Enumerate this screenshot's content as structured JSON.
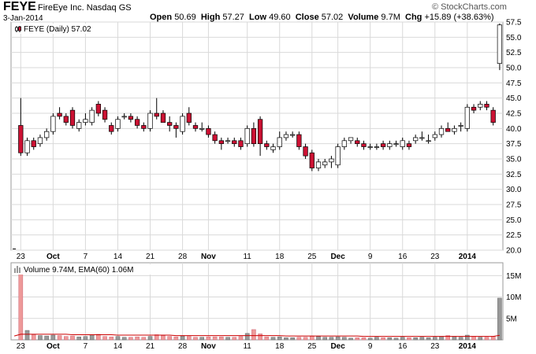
{
  "header": {
    "symbol": "FEYE",
    "company": "FireEye Inc. Nasdaq GS",
    "date": "3-Jan-2014",
    "open_label": "Open",
    "open": "50.69",
    "high_label": "High",
    "high": "57.27",
    "low_label": "Low",
    "low": "49.60",
    "close_label": "Close",
    "close": "57.02",
    "volume_label": "Volume",
    "volume": "9.7M",
    "chg_label": "Chg",
    "chg": "+15.89 (+38.63%)",
    "logo": "© StockCharts.com"
  },
  "colors": {
    "up": "#ffffff",
    "down": "#cc1133",
    "grid": "#d9d9d9",
    "volume_up": "#999999",
    "volume_down": "#ee9999",
    "ema": "#cc0000"
  },
  "chart_data": [
    {
      "type": "candlestick",
      "legend": "FEYE (Daily) 57.02",
      "y_ticks": [
        "57.5",
        "55.0",
        "52.5",
        "50.0",
        "47.5",
        "45.0",
        "42.5",
        "40.0",
        "37.5",
        "35.0",
        "32.5",
        "30.0",
        "27.5",
        "25.0",
        "22.5",
        "20.0"
      ],
      "ylim": [
        20,
        57.5
      ],
      "x_labels": [
        {
          "label": "23",
          "index": 1,
          "bold": false
        },
        {
          "label": "Oct",
          "index": 6,
          "bold": true
        },
        {
          "label": "7",
          "index": 11,
          "bold": false
        },
        {
          "label": "14",
          "index": 16,
          "bold": false
        },
        {
          "label": "21",
          "index": 21,
          "bold": false
        },
        {
          "label": "28",
          "index": 26,
          "bold": false
        },
        {
          "label": "Nov",
          "index": 30,
          "bold": true
        },
        {
          "label": "11",
          "index": 36,
          "bold": false
        },
        {
          "label": "18",
          "index": 41,
          "bold": false
        },
        {
          "label": "25",
          "index": 46,
          "bold": false
        },
        {
          "label": "Dec",
          "index": 50,
          "bold": true
        },
        {
          "label": "9",
          "index": 55,
          "bold": false
        },
        {
          "label": "16",
          "index": 60,
          "bold": false
        },
        {
          "label": "23",
          "index": 65,
          "bold": false
        },
        {
          "label": "2014",
          "index": 70,
          "bold": true
        }
      ],
      "ohlc": [
        [
          20.2,
          20.2,
          20.2,
          20.2
        ],
        [
          40.5,
          45.0,
          35.5,
          36.0
        ],
        [
          36.0,
          38.5,
          35.5,
          38.0
        ],
        [
          38.0,
          38.5,
          36.5,
          37.0
        ],
        [
          37.5,
          39.0,
          37.0,
          38.5
        ],
        [
          38.5,
          40.0,
          38.0,
          39.5
        ],
        [
          39.5,
          42.5,
          39.0,
          42.0
        ],
        [
          42.5,
          43.5,
          41.5,
          42.0
        ],
        [
          42.0,
          42.5,
          40.5,
          41.0
        ],
        [
          43.0,
          43.5,
          40.0,
          40.5
        ],
        [
          40.0,
          41.5,
          39.5,
          41.0
        ],
        [
          41.0,
          42.5,
          40.5,
          41.5
        ],
        [
          41.0,
          43.5,
          40.5,
          43.0
        ],
        [
          44.0,
          44.5,
          42.0,
          42.5
        ],
        [
          43.0,
          43.5,
          41.0,
          41.5
        ],
        [
          40.5,
          41.0,
          39.0,
          39.5
        ],
        [
          40.0,
          42.0,
          39.5,
          41.5
        ],
        [
          42.0,
          42.5,
          41.5,
          42.0
        ],
        [
          42.0,
          42.5,
          41.0,
          41.5
        ],
        [
          41.5,
          42.0,
          40.0,
          40.5
        ],
        [
          40.5,
          41.0,
          39.5,
          40.0
        ],
        [
          40.0,
          43.0,
          39.5,
          42.5
        ],
        [
          42.5,
          45.0,
          41.5,
          42.0
        ],
        [
          42.5,
          43.0,
          41.0,
          41.0
        ],
        [
          41.0,
          42.0,
          39.5,
          40.5
        ],
        [
          40.5,
          41.0,
          38.5,
          40.0
        ],
        [
          39.5,
          42.5,
          39.0,
          42.0
        ],
        [
          42.5,
          43.5,
          40.5,
          41.0
        ],
        [
          40.5,
          41.0,
          39.5,
          40.0
        ],
        [
          40.0,
          41.0,
          39.5,
          40.0
        ],
        [
          40.0,
          40.5,
          38.5,
          39.0
        ],
        [
          39.0,
          39.5,
          37.5,
          38.0
        ],
        [
          38.0,
          38.5,
          36.5,
          37.5
        ],
        [
          38.0,
          38.5,
          37.5,
          38.0
        ],
        [
          38.0,
          38.5,
          37.0,
          37.5
        ],
        [
          38.0,
          38.5,
          36.5,
          37.0
        ],
        [
          37.5,
          40.5,
          37.0,
          40.0
        ],
        [
          40.0,
          41.0,
          37.0,
          37.5
        ],
        [
          41.5,
          42.0,
          35.5,
          37.5
        ],
        [
          37.5,
          38.0,
          36.5,
          37.0
        ],
        [
          36.5,
          37.5,
          36.0,
          37.0
        ],
        [
          37.0,
          39.5,
          36.5,
          38.5
        ],
        [
          38.5,
          39.5,
          38.0,
          39.0
        ],
        [
          39.0,
          39.5,
          38.5,
          39.0
        ],
        [
          39.0,
          39.5,
          36.5,
          37.0
        ],
        [
          37.0,
          37.5,
          35.0,
          35.5
        ],
        [
          36.0,
          36.5,
          33.0,
          33.5
        ],
        [
          33.5,
          35.0,
          33.0,
          34.5
        ],
        [
          34.0,
          35.0,
          33.5,
          34.5
        ],
        [
          34.5,
          35.5,
          33.5,
          35.0
        ],
        [
          34.0,
          37.5,
          33.5,
          37.0
        ],
        [
          37.0,
          38.5,
          36.5,
          38.0
        ],
        [
          38.0,
          38.5,
          37.5,
          38.5
        ],
        [
          38.0,
          38.5,
          37.0,
          37.5
        ],
        [
          37.5,
          38.0,
          36.5,
          37.0
        ],
        [
          37.0,
          37.5,
          36.5,
          37.0
        ],
        [
          37.0,
          37.5,
          36.5,
          37.0
        ],
        [
          37.5,
          38.0,
          36.5,
          37.0
        ],
        [
          37.0,
          38.0,
          36.5,
          37.5
        ],
        [
          37.5,
          38.0,
          37.0,
          37.5
        ],
        [
          37.0,
          38.5,
          36.5,
          38.0
        ],
        [
          37.5,
          38.0,
          36.5,
          37.0
        ],
        [
          38.0,
          39.0,
          37.5,
          38.5
        ],
        [
          38.5,
          39.5,
          38.0,
          38.5
        ],
        [
          38.0,
          39.0,
          37.5,
          38.0
        ],
        [
          38.5,
          39.5,
          38.0,
          39.0
        ],
        [
          39.0,
          40.5,
          38.5,
          40.0
        ],
        [
          40.0,
          41.0,
          39.5,
          39.5
        ],
        [
          39.5,
          40.5,
          39.0,
          40.0
        ],
        [
          40.5,
          41.0,
          39.5,
          40.5
        ],
        [
          40.0,
          44.0,
          39.5,
          43.5
        ],
        [
          43.5,
          44.0,
          42.5,
          43.0
        ],
        [
          43.5,
          44.5,
          43.0,
          44.0
        ],
        [
          44.0,
          44.5,
          43.0,
          43.5
        ],
        [
          43.0,
          43.5,
          40.5,
          41.0
        ],
        [
          50.69,
          57.27,
          49.6,
          57.02
        ]
      ]
    },
    {
      "type": "bar",
      "legend": "Volume 9.74M, EMA(60) 1.06M",
      "y_ticks": [
        "15M",
        "10M",
        "5M"
      ],
      "ylim": [
        0,
        18
      ],
      "volume": [
        0.0,
        15.5,
        2.2,
        1.2,
        1.0,
        0.9,
        1.1,
        1.0,
        0.8,
        0.9,
        0.7,
        0.8,
        1.2,
        1.3,
        0.8,
        0.7,
        0.8,
        0.6,
        0.6,
        0.7,
        0.6,
        0.8,
        1.2,
        1.0,
        0.8,
        0.7,
        0.9,
        0.8,
        0.6,
        0.6,
        0.7,
        0.7,
        0.7,
        0.6,
        0.6,
        0.8,
        1.5,
        2.4,
        1.4,
        0.7,
        0.6,
        0.7,
        0.5,
        0.5,
        0.6,
        0.6,
        0.9,
        0.8,
        0.6,
        0.6,
        0.7,
        0.6,
        0.4,
        0.5,
        0.5,
        0.4,
        0.6,
        0.5,
        0.5,
        0.4,
        0.6,
        0.5,
        0.5,
        0.6,
        0.5,
        0.6,
        0.8,
        1.0,
        0.8,
        0.6,
        1.1,
        0.8,
        0.6,
        0.6,
        0.8,
        9.74
      ],
      "ema": [
        0.9,
        1.3,
        1.3,
        1.3,
        1.3,
        1.3,
        1.3,
        1.3,
        1.3,
        1.2,
        1.2,
        1.2,
        1.2,
        1.2,
        1.2,
        1.2,
        1.1,
        1.1,
        1.1,
        1.1,
        1.1,
        1.1,
        1.1,
        1.1,
        1.1,
        1.0,
        1.0,
        1.0,
        1.0,
        1.0,
        1.0,
        1.0,
        1.0,
        1.0,
        1.0,
        1.0,
        1.0,
        1.0,
        1.0,
        1.0,
        1.0,
        1.0,
        0.9,
        0.9,
        0.9,
        0.9,
        0.9,
        0.9,
        0.9,
        0.9,
        0.9,
        0.9,
        0.9,
        0.9,
        0.8,
        0.8,
        0.8,
        0.8,
        0.8,
        0.8,
        0.8,
        0.8,
        0.8,
        0.8,
        0.8,
        0.8,
        0.8,
        0.8,
        0.8,
        0.8,
        0.8,
        0.8,
        0.8,
        0.8,
        0.8,
        1.06
      ]
    }
  ]
}
